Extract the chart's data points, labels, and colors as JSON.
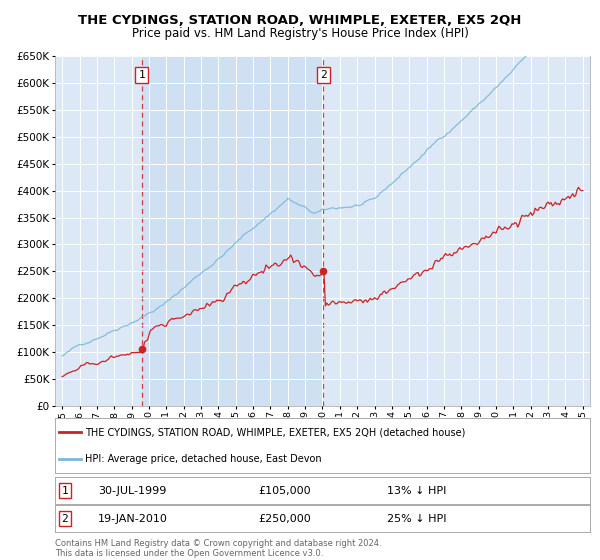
{
  "title": "THE CYDINGS, STATION ROAD, WHIMPLE, EXETER, EX5 2QH",
  "subtitle": "Price paid vs. HM Land Registry's House Price Index (HPI)",
  "ylim": [
    0,
    650000
  ],
  "yticks": [
    0,
    50000,
    100000,
    150000,
    200000,
    250000,
    300000,
    350000,
    400000,
    450000,
    500000,
    550000,
    600000,
    650000
  ],
  "sale1_x": 1999.58,
  "sale1_y": 105000,
  "sale2_x": 2010.05,
  "sale2_y": 250000,
  "legend_line1": "THE CYDINGS, STATION ROAD, WHIMPLE, EXETER, EX5 2QH (detached house)",
  "legend_line2": "HPI: Average price, detached house, East Devon",
  "ann1_date": "30-JUL-1999",
  "ann1_price": "£105,000",
  "ann1_hpi": "13% ↓ HPI",
  "ann2_date": "19-JAN-2010",
  "ann2_price": "£250,000",
  "ann2_hpi": "25% ↓ HPI",
  "footer": "Contains HM Land Registry data © Crown copyright and database right 2024.\nThis data is licensed under the Open Government Licence v3.0.",
  "hpi_color": "#7ab8d9",
  "price_color": "#cc2222",
  "bg_color": "#dce8f5",
  "fill_bg": "#ccdff2",
  "grid_color": "#ffffff",
  "vline_color": "#cc2222",
  "xlim_left": 1994.6,
  "xlim_right": 2025.4
}
